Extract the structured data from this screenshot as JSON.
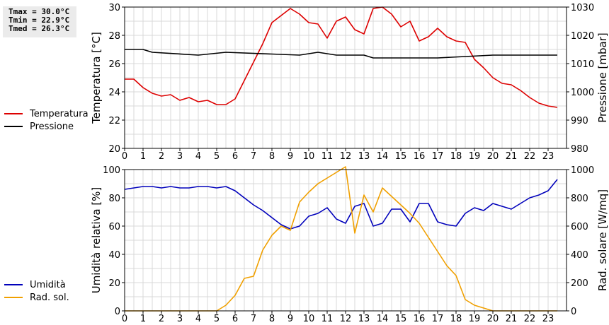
{
  "stats": {
    "tmax": "Tmax = 30.0°C",
    "tmin": "Tmin = 22.9°C",
    "tmed": "Tmed = 26.3°C"
  },
  "colors": {
    "temperature": "#dd0000",
    "pressure": "#000000",
    "humidity": "#0000bb",
    "radiation": "#f0a000",
    "grid": "#d8d8d8"
  },
  "chart_data": [
    {
      "type": "line",
      "x_ticks": [
        "0",
        "1",
        "2",
        "3",
        "4",
        "5",
        "6",
        "7",
        "8",
        "9",
        "10",
        "11",
        "12",
        "13",
        "14",
        "15",
        "16",
        "17",
        "18",
        "19",
        "20",
        "21",
        "22",
        "23"
      ],
      "xlim": [
        0,
        24
      ],
      "ylabel": "Temperatura [°C]",
      "ylim": [
        20,
        30
      ],
      "yticks": [
        "20",
        "22",
        "24",
        "26",
        "28",
        "30"
      ],
      "y2label": "Pressione [mbar]",
      "y2lim": [
        980,
        1030
      ],
      "y2ticks": [
        "980",
        "990",
        "1000",
        "1010",
        "1020",
        "1030"
      ],
      "grid": true,
      "legend_position": "left",
      "series": [
        {
          "name": "Temperatura",
          "axis": "left",
          "x": [
            0,
            0.5,
            1,
            1.5,
            2,
            2.5,
            3,
            3.5,
            4,
            4.5,
            5,
            5.5,
            6,
            6.5,
            7,
            7.5,
            8,
            8.5,
            9,
            9.5,
            10,
            10.5,
            11,
            11.5,
            12,
            12.5,
            13,
            13.5,
            14,
            14.5,
            15,
            15.5,
            16,
            16.5,
            17,
            17.5,
            18,
            18.5,
            19,
            19.5,
            20,
            20.5,
            21,
            21.5,
            22,
            22.5,
            23,
            23.5
          ],
          "values": [
            24.9,
            24.9,
            24.3,
            23.9,
            23.7,
            23.8,
            23.4,
            23.6,
            23.3,
            23.4,
            23.1,
            23.1,
            23.5,
            24.8,
            26.1,
            27.4,
            28.9,
            29.4,
            29.9,
            29.5,
            28.9,
            28.8,
            27.8,
            29.0,
            29.3,
            28.4,
            28.1,
            29.9,
            30.0,
            29.5,
            28.6,
            29.0,
            27.6,
            27.9,
            28.5,
            27.9,
            27.6,
            27.5,
            26.3,
            25.7,
            25.0,
            24.6,
            24.5,
            24.1,
            23.6,
            23.2,
            23.0,
            22.9
          ]
        },
        {
          "name": "Pressione",
          "axis": "right",
          "x": [
            0,
            1,
            1.5,
            4,
            5.5,
            9.5,
            10.5,
            11.5,
            13,
            13.5,
            17,
            20,
            23.5
          ],
          "values": [
            1015,
            1015,
            1014,
            1013,
            1014,
            1013,
            1014,
            1013,
            1013,
            1012,
            1012,
            1013,
            1013
          ]
        }
      ]
    },
    {
      "type": "line",
      "x_ticks": [
        "0",
        "1",
        "2",
        "3",
        "4",
        "5",
        "6",
        "7",
        "8",
        "9",
        "10",
        "11",
        "12",
        "13",
        "14",
        "15",
        "16",
        "17",
        "18",
        "19",
        "20",
        "21",
        "22",
        "23"
      ],
      "xlim": [
        0,
        24
      ],
      "ylabel": "Umidità relativa [%]",
      "ylim": [
        0,
        100
      ],
      "yticks": [
        "0",
        "20",
        "40",
        "60",
        "80",
        "100"
      ],
      "y2label": "Rad. solare [W/mq]",
      "y2lim": [
        0,
        1000
      ],
      "y2ticks": [
        "0",
        "200",
        "400",
        "600",
        "800",
        "1000"
      ],
      "grid": true,
      "legend_position": "left",
      "series": [
        {
          "name": "Umidità",
          "axis": "left",
          "x": [
            0,
            0.5,
            1,
            1.5,
            2,
            2.5,
            3,
            3.5,
            4,
            4.5,
            5,
            5.5,
            6,
            6.5,
            7,
            7.5,
            8,
            8.5,
            9,
            9.5,
            10,
            10.5,
            11,
            11.5,
            12,
            12.5,
            13,
            13.5,
            14,
            14.5,
            15,
            15.5,
            16,
            16.5,
            17,
            17.5,
            18,
            18.5,
            19,
            19.5,
            20,
            20.5,
            21,
            21.5,
            22,
            22.5,
            23,
            23.5
          ],
          "values": [
            86,
            87,
            88,
            88,
            87,
            88,
            87,
            87,
            88,
            88,
            87,
            88,
            85,
            80,
            75,
            71,
            66,
            61,
            58,
            60,
            67,
            69,
            73,
            65,
            62,
            74,
            76,
            60,
            62,
            72,
            72,
            63,
            76,
            76,
            63,
            61,
            60,
            69,
            73,
            71,
            76,
            74,
            72,
            76,
            80,
            82,
            85,
            93
          ]
        },
        {
          "name": "Rad. sol.",
          "axis": "right",
          "x": [
            0,
            5,
            5.5,
            6,
            6.5,
            7,
            7.5,
            8,
            8.5,
            9,
            9.5,
            10,
            10.5,
            11,
            11.5,
            12,
            12.5,
            13,
            13.5,
            14,
            14.5,
            15,
            15.5,
            16,
            16.5,
            17,
            17.5,
            18,
            18.5,
            19,
            19.5,
            20,
            23.5
          ],
          "values": [
            0,
            0,
            40,
            110,
            230,
            245,
            430,
            535,
            600,
            570,
            770,
            840,
            900,
            940,
            980,
            1020,
            550,
            820,
            700,
            870,
            810,
            750,
            690,
            620,
            520,
            420,
            320,
            250,
            80,
            40,
            20,
            0,
            0
          ]
        }
      ]
    }
  ]
}
